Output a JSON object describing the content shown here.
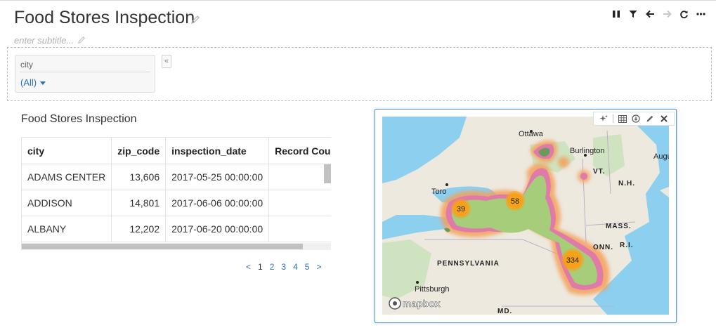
{
  "header": {
    "title": "Food Stores Inspection",
    "subtitle_placeholder": "enter subtitle..."
  },
  "toolbar": {
    "icons": [
      "pause-icon",
      "filter-icon",
      "arrow-left-icon",
      "arrow-right-icon",
      "refresh-icon",
      "more-icon"
    ]
  },
  "filter": {
    "label": "city",
    "value": "(All)",
    "collapse_glyph": "«"
  },
  "table": {
    "title": "Food Stores Inspection",
    "columns": [
      "city",
      "zip_code",
      "inspection_date",
      "Record Count"
    ],
    "rows": [
      [
        "ADAMS CENTER",
        "13,606",
        "2017-05-25 00:00:00",
        ""
      ],
      [
        "ADDISON",
        "14,801",
        "2017-06-06 00:00:00",
        ""
      ],
      [
        "ALBANY",
        "12,202",
        "2017-06-20 00:00:00",
        ""
      ]
    ],
    "pager": {
      "prev": "<",
      "pages": [
        "1",
        "2",
        "3",
        "4",
        "5"
      ],
      "current": "1",
      "next": ">"
    }
  },
  "map": {
    "labels": {
      "ottawa": "Ottawa",
      "burlington": "Burlington",
      "augusta": "Augu",
      "vt": "VT.",
      "nh": "N.H.",
      "toronto": "Toro",
      "mass": "MASS.",
      "ri": "R.I.",
      "conn": "ONN.",
      "pennsylvania": "PENNSYLVANIA",
      "pittsburgh": "Pittsburgh",
      "md": "MD.",
      "attribution": "mapbox"
    },
    "clusters": [
      {
        "label": "39"
      },
      {
        "label": "58"
      },
      {
        "label": "334"
      }
    ],
    "colors": {
      "water": "#8ccfee",
      "land": "#ede9df",
      "park": "#cfe3c0",
      "heat_core": "#a6cd7a",
      "heat_mid": "#e07aa8",
      "heat_outer": "#f4a05a",
      "cluster": "#f7a11a"
    },
    "toolbar_icons": [
      "sparkle-icon",
      "table-icon",
      "download-icon",
      "pencil-icon",
      "close-icon"
    ]
  }
}
